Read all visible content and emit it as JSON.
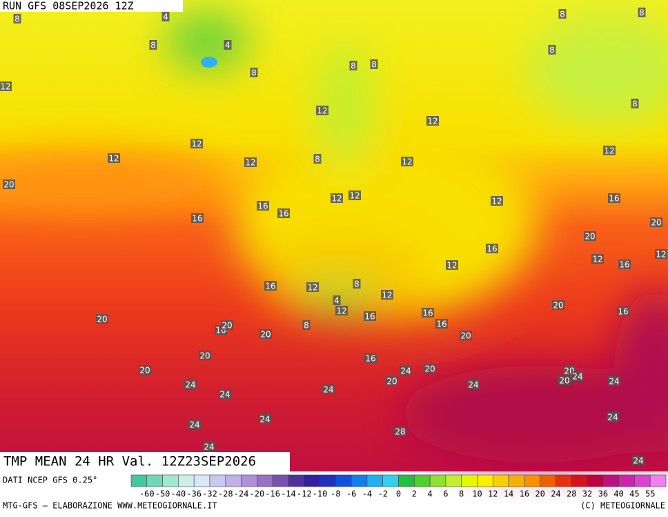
{
  "header": {
    "run": "RUN GFS 08SEP2026 12Z"
  },
  "map": {
    "title": "TMP MEAN 24 HR Val. 12Z23SEP2026",
    "contour_labels": [
      8,
      4,
      8,
      4,
      8,
      8,
      8,
      8,
      12,
      8,
      8,
      12,
      12,
      8,
      12,
      12,
      12,
      8,
      12,
      12,
      20,
      12,
      12,
      12,
      16,
      16,
      16,
      16,
      20,
      20,
      16,
      12,
      16,
      12,
      12,
      16,
      12,
      8,
      12,
      4,
      12,
      20,
      16,
      20,
      16,
      16,
      16,
      16,
      20,
      20,
      8,
      20,
      20,
      16,
      20,
      24,
      20,
      20,
      24,
      20,
      20,
      24,
      24,
      24,
      24,
      24,
      24,
      24,
      24,
      28,
      24,
      24
    ]
  },
  "legend": {
    "source": "DATI NCEP GFS 0.25°",
    "ticks": [
      -60,
      -50,
      -40,
      -36,
      -32,
      -28,
      -24,
      -20,
      -16,
      -14,
      -12,
      -10,
      -8,
      -6,
      -4,
      -2,
      0,
      2,
      4,
      6,
      8,
      10,
      12,
      14,
      16,
      20,
      24,
      28,
      32,
      36,
      40,
      45,
      55
    ],
    "colors": [
      "#40c8a0",
      "#70d8b8",
      "#a0e8d0",
      "#c8f0e8",
      "#d8e8f8",
      "#c8c8f0",
      "#c0b0e8",
      "#b090d8",
      "#9870c8",
      "#7850b0",
      "#5030a0",
      "#3020a0",
      "#2030c0",
      "#1050e0",
      "#1080f0",
      "#20b0f0",
      "#30d0f0",
      "#20c040",
      "#50d030",
      "#90e030",
      "#c0f030",
      "#e8f800",
      "#f8f000",
      "#f8d000",
      "#f8b000",
      "#f89000",
      "#f06000",
      "#e83010",
      "#d81020",
      "#c00040",
      "#c01080",
      "#d020b0",
      "#e040d0",
      "#f080f0"
    ]
  },
  "footer": {
    "left": "MTG-GFS — ELABORAZIONE WWW.METEOGIORNALE.IT",
    "right": "(C) METEOGIORNALE"
  }
}
